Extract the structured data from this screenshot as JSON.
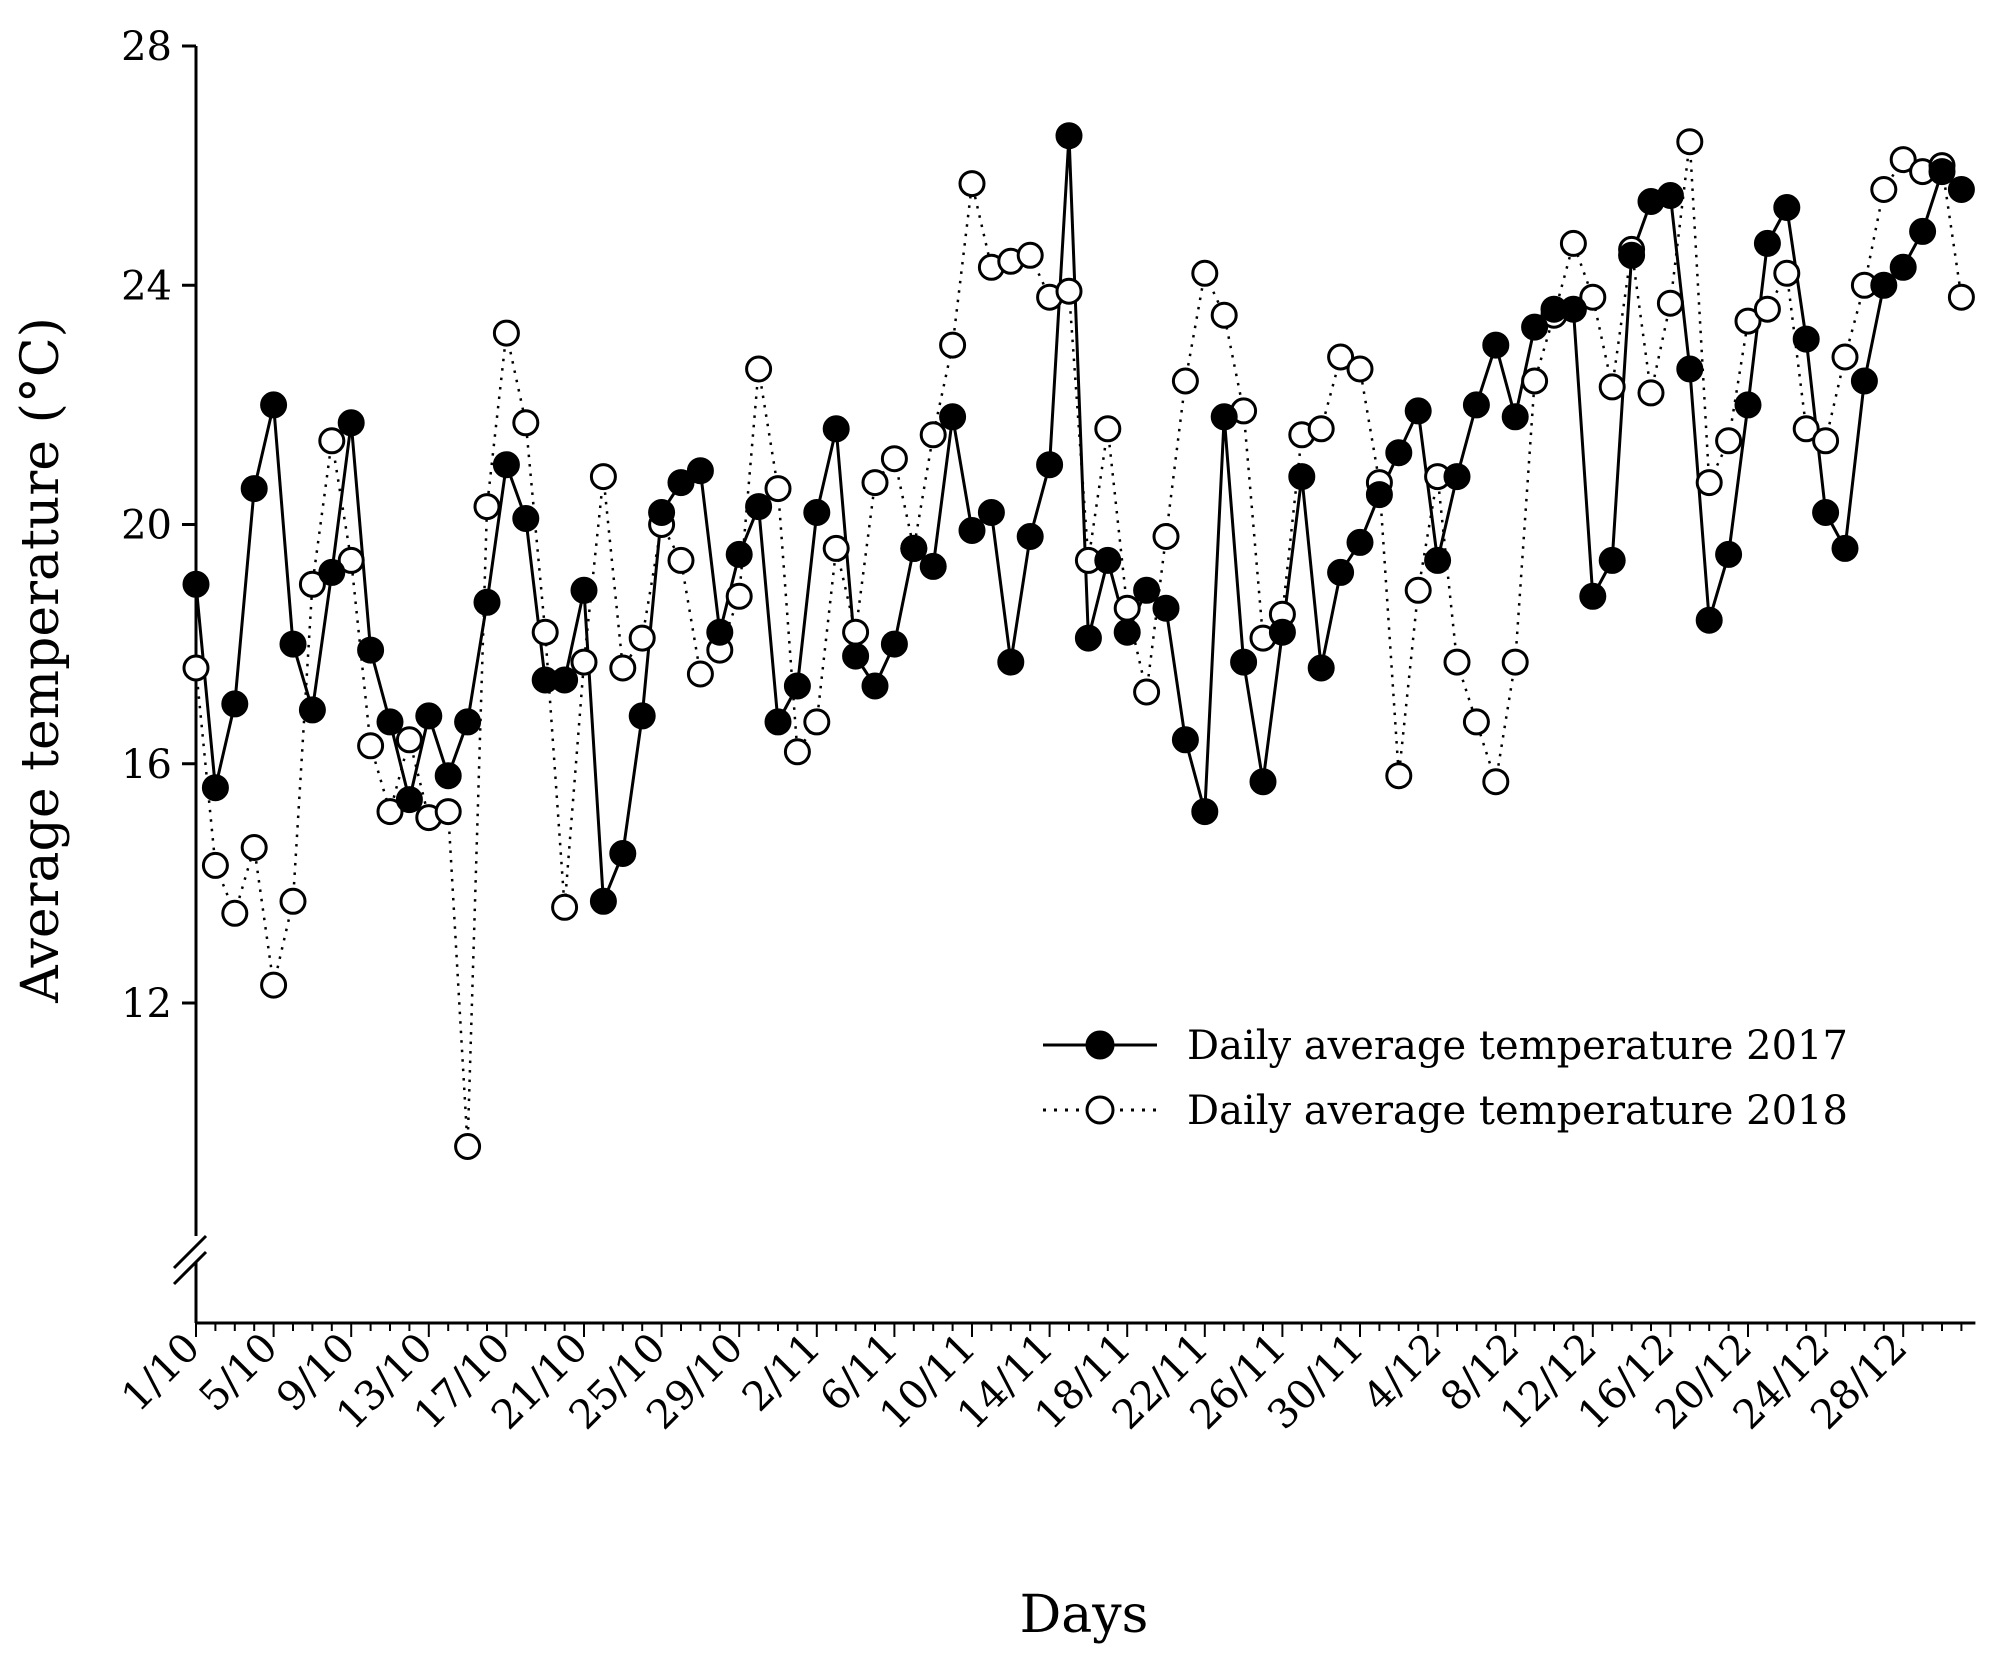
{
  "chart_data": {
    "type": "line",
    "title": "",
    "xlabel": "Days",
    "ylabel": "Average temperature (°C)",
    "ylim": [
      6.5,
      28
    ],
    "yticks": [
      12,
      16,
      20,
      24,
      28
    ],
    "axis_break": "between 6.5 and 12 on y-axis",
    "grid": false,
    "legend_position": "right, lower-middle",
    "x_tick_labels": [
      "1/10",
      "5/10",
      "9/10",
      "13/10",
      "17/10",
      "21/10",
      "25/10",
      "29/10",
      "2/11",
      "6/11",
      "10/11",
      "14/11",
      "18/11",
      "22/11",
      "26/11",
      "30/11",
      "4/12",
      "8/12",
      "12/12",
      "16/12",
      "20/12",
      "24/12",
      "28/12"
    ],
    "x_tick_step": 4,
    "series": [
      {
        "name": "Daily average temperature 2017",
        "marker": "filled-circle",
        "line": "solid",
        "values": [
          19.0,
          15.6,
          17.0,
          20.6,
          22.0,
          18.0,
          16.9,
          19.2,
          21.7,
          17.9,
          16.7,
          15.4,
          16.8,
          15.8,
          16.7,
          18.7,
          21.0,
          20.1,
          17.4,
          17.4,
          18.9,
          13.7,
          14.5,
          16.8,
          20.2,
          20.7,
          20.9,
          18.2,
          19.5,
          20.3,
          16.7,
          17.3,
          20.2,
          21.6,
          17.8,
          17.3,
          18.0,
          19.6,
          19.3,
          21.8,
          19.9,
          20.2,
          17.7,
          19.8,
          21.0,
          26.5,
          18.1,
          19.4,
          18.2,
          18.9,
          18.6,
          16.4,
          15.2,
          21.8,
          17.7,
          15.7,
          18.2,
          20.8,
          17.6,
          19.2,
          19.7,
          20.5,
          21.2,
          21.9,
          19.4,
          20.8,
          22.0,
          23.0,
          21.8,
          23.3,
          23.6,
          23.6,
          18.8,
          19.4,
          24.5,
          25.4,
          25.5,
          22.6,
          18.4,
          19.5,
          22.0,
          24.7,
          25.3,
          23.1,
          20.2,
          19.6,
          22.4,
          24.0,
          24.3,
          24.9,
          25.9,
          25.6
        ]
      },
      {
        "name": "Daily average temperature 2018",
        "marker": "open-circle",
        "line": "dotted",
        "values": [
          17.6,
          14.3,
          13.5,
          14.6,
          12.3,
          13.7,
          19.0,
          21.4,
          19.4,
          16.3,
          15.2,
          16.4,
          15.1,
          15.2,
          9.6,
          20.3,
          23.2,
          21.7,
          18.2,
          13.6,
          17.7,
          20.8,
          17.6,
          18.1,
          20.0,
          19.4,
          17.5,
          17.9,
          18.8,
          22.6,
          20.6,
          16.2,
          16.7,
          19.6,
          18.2,
          20.7,
          21.1,
          19.6,
          21.5,
          23.0,
          25.7,
          24.3,
          24.4,
          24.5,
          23.8,
          23.9,
          19.4,
          21.6,
          18.6,
          17.2,
          19.8,
          22.4,
          24.2,
          23.5,
          21.9,
          18.1,
          18.5,
          21.5,
          21.6,
          22.8,
          22.6,
          20.7,
          15.8,
          18.9,
          20.8,
          17.7,
          16.7,
          15.7,
          17.7,
          22.4,
          23.5,
          24.7,
          23.8,
          22.3,
          24.6,
          22.2,
          23.7,
          26.4,
          20.7,
          21.4,
          23.4,
          23.6,
          24.2,
          21.6,
          21.4,
          22.8,
          24.0,
          25.6,
          26.1,
          25.9,
          26.0,
          23.8
        ]
      }
    ]
  }
}
